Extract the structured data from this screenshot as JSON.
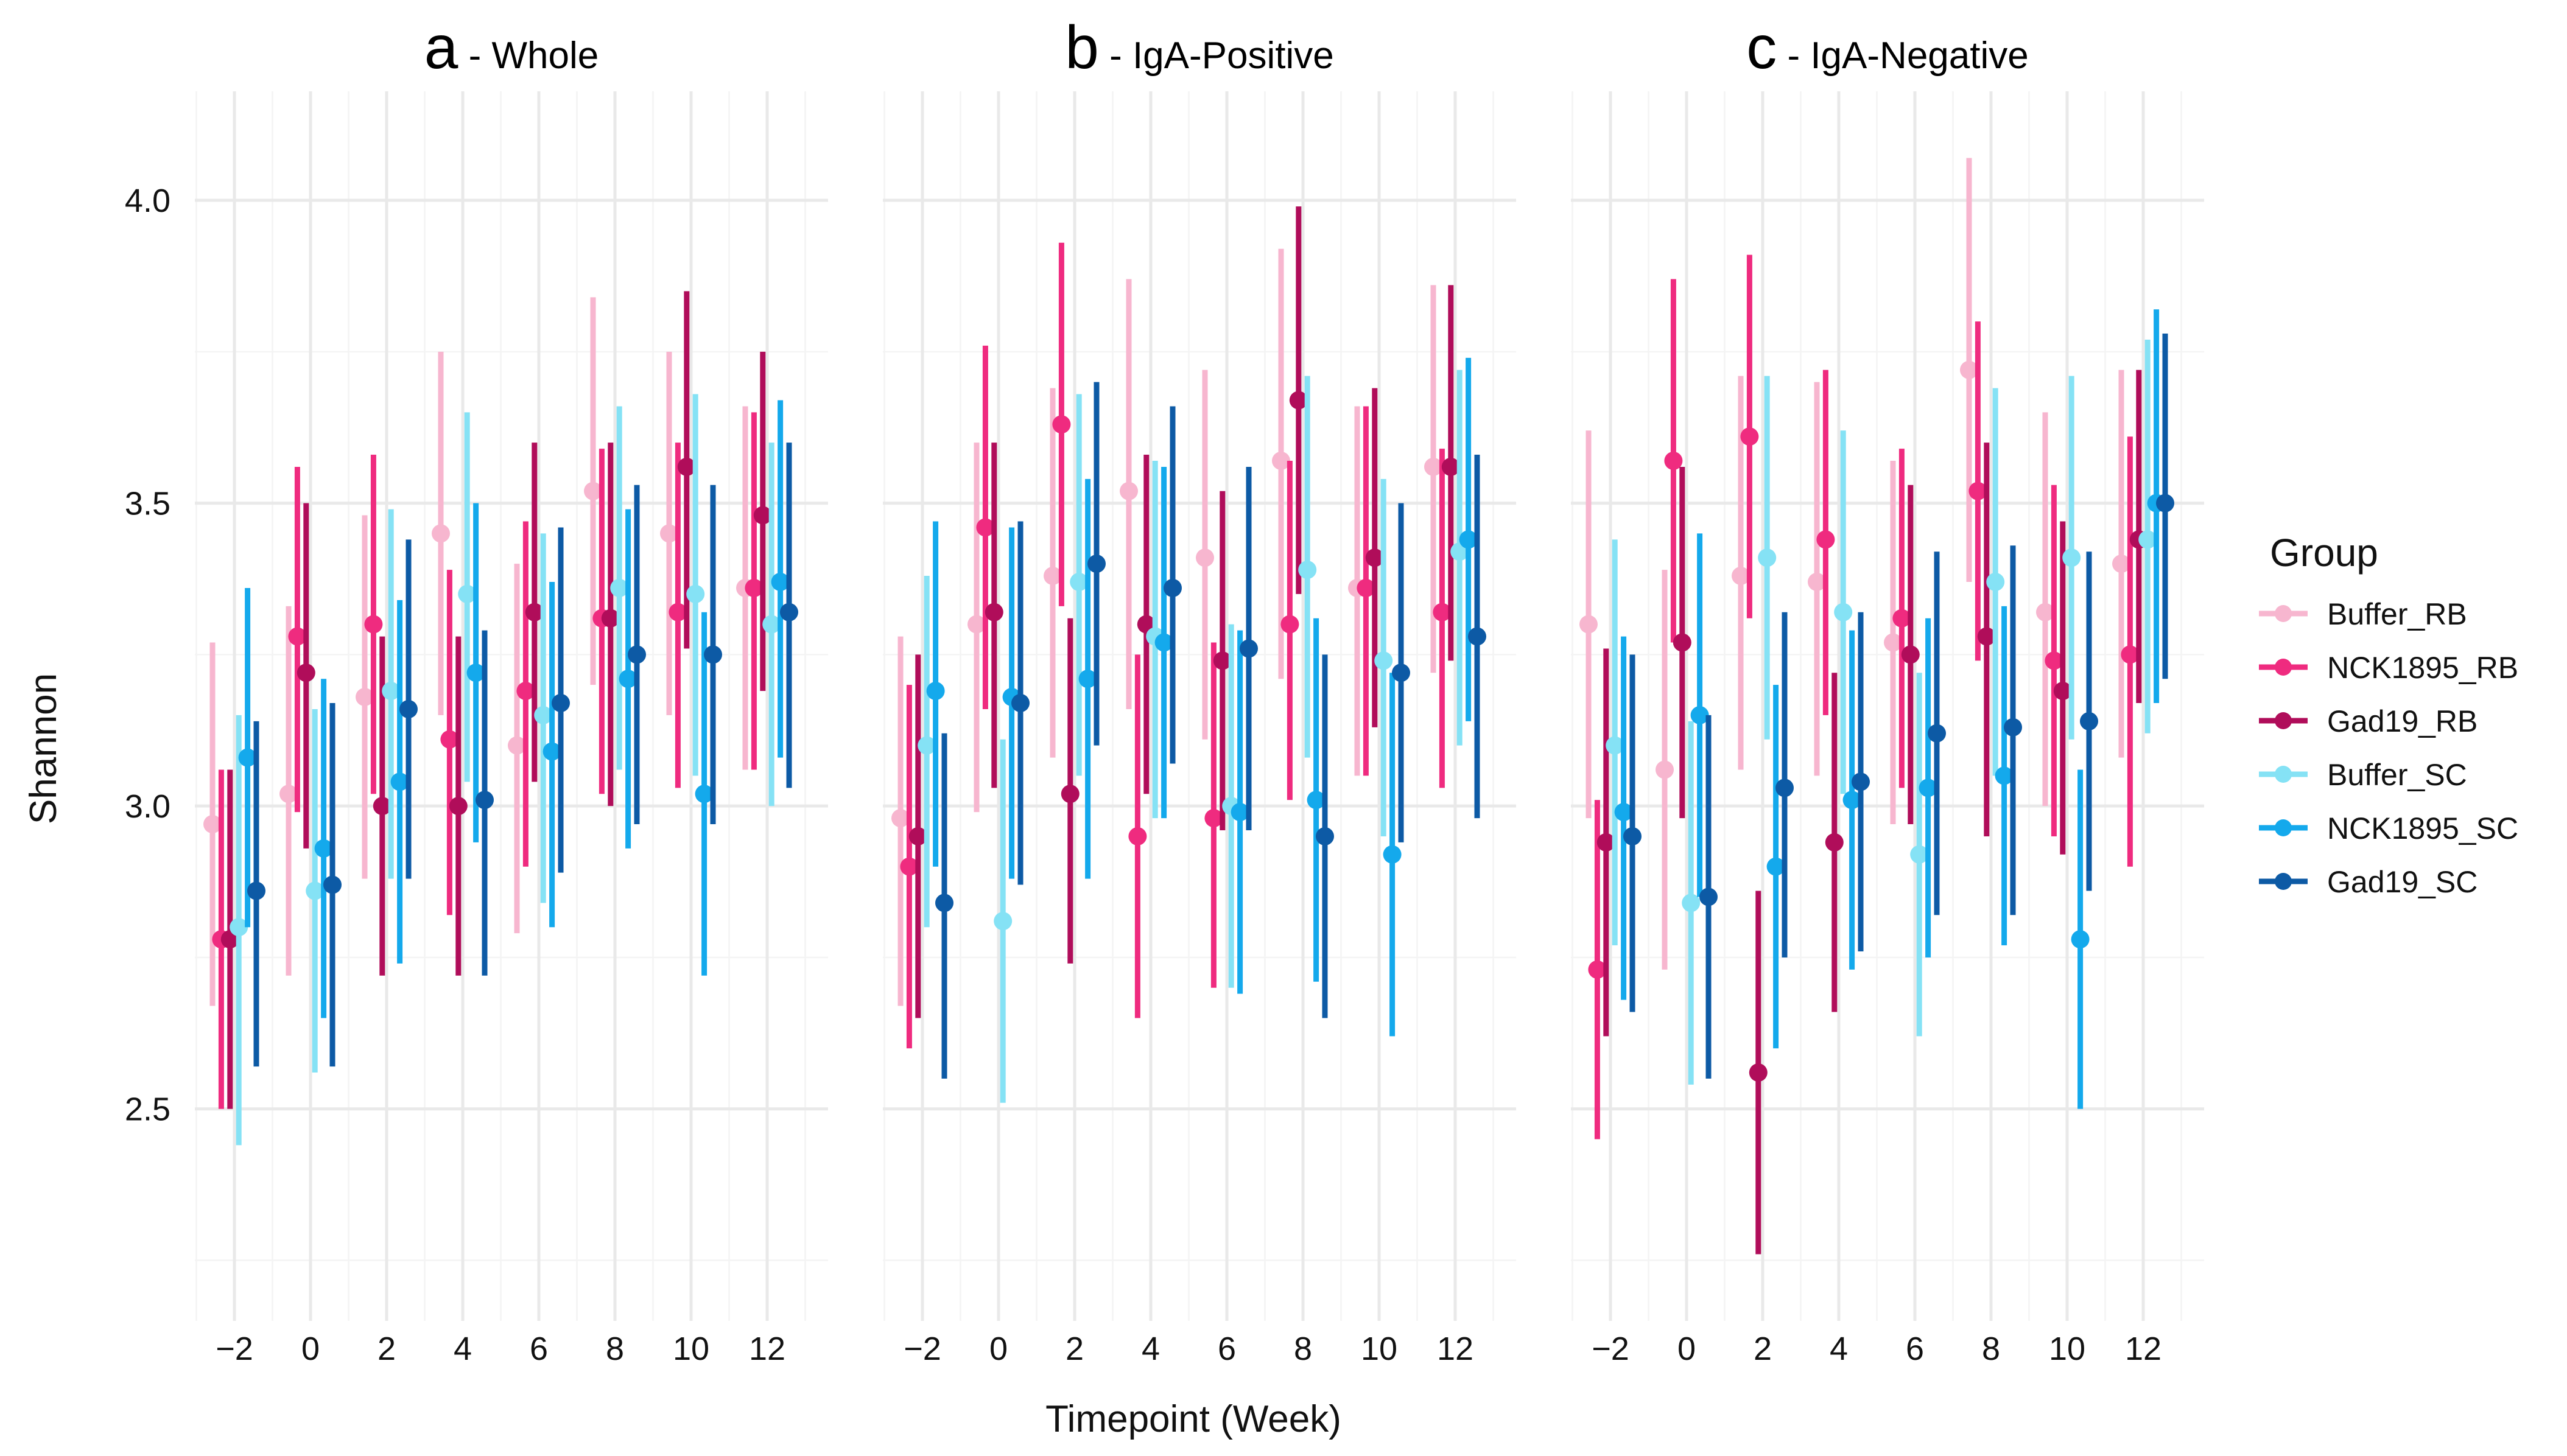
{
  "chart_data": {
    "type": "scatter",
    "subtype": "pointrange",
    "ylabel": "Shannon",
    "xlabel": "Timepoint (Week)",
    "ylim": [
      2.15,
      4.18
    ],
    "yticks": [
      2.5,
      3.0,
      3.5,
      4.0
    ],
    "xticks": [
      -2,
      0,
      2,
      4,
      6,
      8,
      10,
      12
    ],
    "legend": {
      "title": "Group",
      "position": "right",
      "entries": [
        {
          "name": "Buffer_RB",
          "color": "#f7b6cf"
        },
        {
          "name": "NCK1895_RB",
          "color": "#ef2b7f"
        },
        {
          "name": "Gad19_RB",
          "color": "#b00d5a"
        },
        {
          "name": "Buffer_SC",
          "color": "#85e2f5"
        },
        {
          "name": "NCK1895_SC",
          "color": "#14a9ec"
        },
        {
          "name": "Gad19_SC",
          "color": "#0d5aa5"
        }
      ]
    },
    "panels": [
      {
        "letter": "a",
        "subtitle": " - Whole",
        "series": [
          {
            "name": "Buffer_RB",
            "points": [
              [
                -2,
                2.97,
                2.67,
                3.27
              ],
              [
                0,
                3.02,
                2.72,
                3.33
              ],
              [
                2,
                3.18,
                2.88,
                3.48
              ],
              [
                4,
                3.45,
                3.15,
                3.75
              ],
              [
                6,
                3.1,
                2.79,
                3.4
              ],
              [
                8,
                3.52,
                3.2,
                3.84
              ],
              [
                10,
                3.45,
                3.15,
                3.75
              ],
              [
                12,
                3.36,
                3.06,
                3.66
              ]
            ]
          },
          {
            "name": "NCK1895_RB",
            "points": [
              [
                -2,
                2.78,
                2.5,
                3.06
              ],
              [
                0,
                3.28,
                2.99,
                3.56
              ],
              [
                2,
                3.3,
                3.02,
                3.58
              ],
              [
                4,
                3.11,
                2.82,
                3.39
              ],
              [
                6,
                3.19,
                2.9,
                3.47
              ],
              [
                8,
                3.31,
                3.02,
                3.59
              ],
              [
                10,
                3.32,
                3.03,
                3.6
              ],
              [
                12,
                3.36,
                3.06,
                3.65
              ]
            ]
          },
          {
            "name": "Gad19_RB",
            "points": [
              [
                -2,
                2.78,
                2.5,
                3.06
              ],
              [
                0,
                3.22,
                2.93,
                3.5
              ],
              [
                2,
                3.0,
                2.72,
                3.28
              ],
              [
                4,
                3.0,
                2.72,
                3.28
              ],
              [
                6,
                3.32,
                3.04,
                3.6
              ],
              [
                8,
                3.31,
                3.0,
                3.6
              ],
              [
                10,
                3.56,
                3.26,
                3.85
              ],
              [
                12,
                3.48,
                3.19,
                3.75
              ]
            ]
          },
          {
            "name": "Buffer_SC",
            "points": [
              [
                -2,
                2.8,
                2.44,
                3.15
              ],
              [
                0,
                2.86,
                2.56,
                3.16
              ],
              [
                2,
                3.19,
                2.88,
                3.49
              ],
              [
                4,
                3.35,
                3.04,
                3.65
              ],
              [
                6,
                3.15,
                2.84,
                3.45
              ],
              [
                8,
                3.36,
                3.06,
                3.66
              ],
              [
                10,
                3.35,
                3.05,
                3.68
              ],
              [
                12,
                3.3,
                3.0,
                3.6
              ]
            ]
          },
          {
            "name": "NCK1895_SC",
            "points": [
              [
                -2,
                3.08,
                2.8,
                3.36
              ],
              [
                0,
                2.93,
                2.65,
                3.21
              ],
              [
                2,
                3.04,
                2.74,
                3.34
              ],
              [
                4,
                3.22,
                2.94,
                3.5
              ],
              [
                6,
                3.09,
                2.8,
                3.37
              ],
              [
                8,
                3.21,
                2.93,
                3.49
              ],
              [
                10,
                3.02,
                2.72,
                3.32
              ],
              [
                12,
                3.37,
                3.08,
                3.67
              ]
            ]
          },
          {
            "name": "Gad19_SC",
            "points": [
              [
                -2,
                2.86,
                2.57,
                3.14
              ],
              [
                0,
                2.87,
                2.57,
                3.17
              ],
              [
                2,
                3.16,
                2.88,
                3.44
              ],
              [
                4,
                3.01,
                2.72,
                3.29
              ],
              [
                6,
                3.17,
                2.89,
                3.46
              ],
              [
                8,
                3.25,
                2.97,
                3.53
              ],
              [
                10,
                3.25,
                2.97,
                3.53
              ],
              [
                12,
                3.32,
                3.03,
                3.6
              ]
            ]
          }
        ]
      },
      {
        "letter": "b",
        "subtitle": " - IgA-Positive",
        "series": [
          {
            "name": "Buffer_RB",
            "points": [
              [
                -2,
                2.98,
                2.67,
                3.28
              ],
              [
                0,
                3.3,
                2.99,
                3.6
              ],
              [
                2,
                3.38,
                3.08,
                3.69
              ],
              [
                4,
                3.52,
                3.16,
                3.87
              ],
              [
                6,
                3.41,
                3.11,
                3.72
              ],
              [
                8,
                3.57,
                3.21,
                3.92
              ],
              [
                10,
                3.36,
                3.05,
                3.66
              ],
              [
                12,
                3.56,
                3.22,
                3.86
              ]
            ]
          },
          {
            "name": "NCK1895_RB",
            "points": [
              [
                -2,
                2.9,
                2.6,
                3.2
              ],
              [
                0,
                3.46,
                3.16,
                3.76
              ],
              [
                2,
                3.63,
                3.33,
                3.93
              ],
              [
                4,
                2.95,
                2.65,
                3.25
              ],
              [
                6,
                2.98,
                2.7,
                3.27
              ],
              [
                8,
                3.3,
                3.01,
                3.57
              ],
              [
                10,
                3.36,
                3.05,
                3.66
              ],
              [
                12,
                3.32,
                3.03,
                3.59
              ]
            ]
          },
          {
            "name": "Gad19_RB",
            "points": [
              [
                -2,
                2.95,
                2.65,
                3.25
              ],
              [
                0,
                3.32,
                3.03,
                3.6
              ],
              [
                2,
                3.02,
                2.74,
                3.31
              ],
              [
                4,
                3.3,
                3.02,
                3.58
              ],
              [
                6,
                3.24,
                2.96,
                3.52
              ],
              [
                8,
                3.67,
                3.35,
                3.99
              ],
              [
                10,
                3.41,
                3.13,
                3.69
              ],
              [
                12,
                3.56,
                3.24,
                3.86
              ]
            ]
          },
          {
            "name": "Buffer_SC",
            "points": [
              [
                -2,
                3.1,
                2.8,
                3.38
              ],
              [
                0,
                2.81,
                2.51,
                3.11
              ],
              [
                2,
                3.37,
                3.05,
                3.68
              ],
              [
                4,
                3.28,
                2.98,
                3.57
              ],
              [
                6,
                3.0,
                2.7,
                3.3
              ],
              [
                8,
                3.39,
                3.08,
                3.71
              ],
              [
                10,
                3.24,
                2.95,
                3.54
              ],
              [
                12,
                3.42,
                3.1,
                3.72
              ]
            ]
          },
          {
            "name": "NCK1895_SC",
            "points": [
              [
                -2,
                3.19,
                2.9,
                3.47
              ],
              [
                0,
                3.18,
                2.88,
                3.46
              ],
              [
                2,
                3.21,
                2.88,
                3.54
              ],
              [
                4,
                3.27,
                2.98,
                3.56
              ],
              [
                6,
                2.99,
                2.69,
                3.29
              ],
              [
                8,
                3.01,
                2.71,
                3.31
              ],
              [
                10,
                2.92,
                2.62,
                3.22
              ],
              [
                12,
                3.44,
                3.14,
                3.74
              ]
            ]
          },
          {
            "name": "Gad19_SC",
            "points": [
              [
                -2,
                2.84,
                2.55,
                3.12
              ],
              [
                0,
                3.17,
                2.87,
                3.47
              ],
              [
                2,
                3.4,
                3.1,
                3.7
              ],
              [
                4,
                3.36,
                3.07,
                3.66
              ],
              [
                6,
                3.26,
                2.96,
                3.56
              ],
              [
                8,
                2.95,
                2.65,
                3.25
              ],
              [
                10,
                3.22,
                2.94,
                3.5
              ],
              [
                12,
                3.28,
                2.98,
                3.58
              ]
            ]
          }
        ]
      },
      {
        "letter": "c",
        "subtitle": " - IgA-Negative",
        "series": [
          {
            "name": "Buffer_RB",
            "points": [
              [
                -2,
                3.3,
                2.98,
                3.62
              ],
              [
                0,
                3.06,
                2.73,
                3.39
              ],
              [
                2,
                3.38,
                3.06,
                3.71
              ],
              [
                4,
                3.37,
                3.05,
                3.7
              ],
              [
                6,
                3.27,
                2.97,
                3.57
              ],
              [
                8,
                3.72,
                3.37,
                4.07
              ],
              [
                10,
                3.32,
                3.0,
                3.65
              ],
              [
                12,
                3.4,
                3.08,
                3.72
              ]
            ]
          },
          {
            "name": "NCK1895_RB",
            "points": [
              [
                -2,
                2.73,
                2.45,
                3.01
              ],
              [
                0,
                3.57,
                3.27,
                3.87
              ],
              [
                2,
                3.61,
                3.31,
                3.91
              ],
              [
                4,
                3.44,
                3.15,
                3.72
              ],
              [
                6,
                3.31,
                3.03,
                3.59
              ],
              [
                8,
                3.52,
                3.24,
                3.8
              ],
              [
                10,
                3.24,
                2.95,
                3.53
              ],
              [
                12,
                3.25,
                2.9,
                3.61
              ]
            ]
          },
          {
            "name": "Gad19_RB",
            "points": [
              [
                -2,
                2.94,
                2.62,
                3.26
              ],
              [
                0,
                3.27,
                2.98,
                3.56
              ],
              [
                2,
                2.56,
                2.26,
                2.86
              ],
              [
                4,
                2.94,
                2.66,
                3.22
              ],
              [
                6,
                3.25,
                2.97,
                3.53
              ],
              [
                8,
                3.28,
                2.95,
                3.6
              ],
              [
                10,
                3.19,
                2.92,
                3.47
              ],
              [
                12,
                3.44,
                3.17,
                3.72
              ]
            ]
          },
          {
            "name": "Buffer_SC",
            "points": [
              [
                -2,
                3.1,
                2.77,
                3.44
              ],
              [
                0,
                2.84,
                2.54,
                3.14
              ],
              [
                2,
                3.41,
                3.11,
                3.71
              ],
              [
                4,
                3.32,
                3.02,
                3.62
              ],
              [
                6,
                2.92,
                2.62,
                3.22
              ],
              [
                8,
                3.37,
                3.05,
                3.69
              ],
              [
                10,
                3.41,
                3.11,
                3.71
              ],
              [
                12,
                3.44,
                3.12,
                3.77
              ]
            ]
          },
          {
            "name": "NCK1895_SC",
            "points": [
              [
                -2,
                2.99,
                2.68,
                3.28
              ],
              [
                0,
                3.15,
                2.85,
                3.45
              ],
              [
                2,
                2.9,
                2.6,
                3.2
              ],
              [
                4,
                3.01,
                2.73,
                3.29
              ],
              [
                6,
                3.03,
                2.75,
                3.31
              ],
              [
                8,
                3.05,
                2.77,
                3.33
              ],
              [
                10,
                2.78,
                2.5,
                3.06
              ],
              [
                12,
                3.5,
                3.17,
                3.82
              ]
            ]
          },
          {
            "name": "Gad19_SC",
            "points": [
              [
                -2,
                2.95,
                2.66,
                3.25
              ],
              [
                0,
                2.85,
                2.55,
                3.15
              ],
              [
                2,
                3.03,
                2.75,
                3.32
              ],
              [
                4,
                3.04,
                2.76,
                3.32
              ],
              [
                6,
                3.12,
                2.82,
                3.42
              ],
              [
                8,
                3.13,
                2.82,
                3.43
              ],
              [
                10,
                3.14,
                2.86,
                3.42
              ],
              [
                12,
                3.5,
                3.21,
                3.78
              ]
            ]
          }
        ]
      }
    ]
  }
}
